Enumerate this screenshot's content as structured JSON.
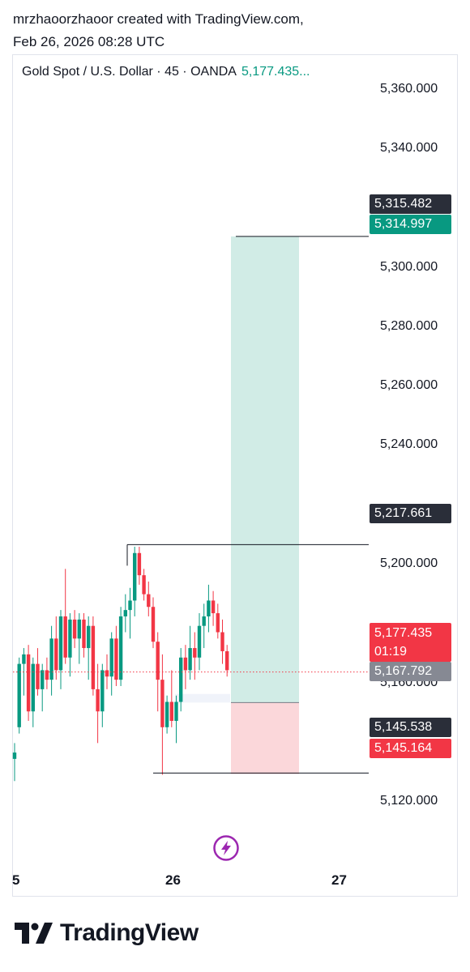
{
  "header": {
    "line1": "mrzhaoorzhaoor created with TradingView.com,",
    "line2": "Feb 26, 2026 08:28 UTC"
  },
  "legend": {
    "symbol": "Gold Spot / U.S. Dollar · 45 · OANDA",
    "price": "5,177.435..."
  },
  "price_axis": [
    "5,360.000",
    "5,340.000",
    "5,300.000",
    "5,280.000",
    "5,260.000",
    "5,240.000",
    "5,200.000",
    "5,160.000",
    "5,120.000"
  ],
  "tags": {
    "high_target": "5,315.482",
    "take_profit": "5,314.997",
    "swing_high": "5,217.661",
    "last_price": "5,177.435",
    "countdown": "01:19",
    "entry": "5,167.792",
    "swing_low": "5,145.538",
    "stop_loss": "5,145.164"
  },
  "time_axis": [
    "5",
    "26",
    "27"
  ],
  "footer": {
    "brand": "TradingView",
    "logo": "tradingview-logo-icon"
  },
  "colors": {
    "up": "#089981",
    "down": "#f23645",
    "profit_zone": "#d1ece6",
    "loss_zone": "#fbd7da",
    "flash": "#9c27b0"
  },
  "chart_data": {
    "type": "candlestick",
    "symbol": "XAUUSD",
    "timeframe": "45",
    "ylim": [
      5107,
      5372
    ],
    "last": 5177.435,
    "position": {
      "type": "long",
      "entry": 5167.792,
      "target": 5314.997,
      "stop": 5145.164
    },
    "levels": [
      5315.482,
      5217.661,
      5145.538
    ],
    "candles": [
      [
        5150,
        5155,
        5143,
        5152
      ],
      [
        5160,
        5182,
        5158,
        5180
      ],
      [
        5180,
        5185,
        5170,
        5183
      ],
      [
        5183,
        5186,
        5162,
        5165
      ],
      [
        5165,
        5182,
        5160,
        5180
      ],
      [
        5180,
        5185,
        5170,
        5172
      ],
      [
        5172,
        5180,
        5165,
        5178
      ],
      [
        5178,
        5182,
        5172,
        5175
      ],
      [
        5175,
        5192,
        5170,
        5188
      ],
      [
        5188,
        5195,
        5175,
        5178
      ],
      [
        5178,
        5197,
        5172,
        5195
      ],
      [
        5195,
        5210,
        5180,
        5182
      ],
      [
        5182,
        5196,
        5176,
        5194
      ],
      [
        5194,
        5197,
        5185,
        5188
      ],
      [
        5188,
        5196,
        5180,
        5194
      ],
      [
        5194,
        5196,
        5182,
        5185
      ],
      [
        5185,
        5195,
        5175,
        5192
      ],
      [
        5192,
        5195,
        5170,
        5172
      ],
      [
        5172,
        5180,
        5155,
        5165
      ],
      [
        5165,
        5180,
        5160,
        5178
      ],
      [
        5178,
        5183,
        5172,
        5176
      ],
      [
        5176,
        5190,
        5170,
        5188
      ],
      [
        5188,
        5192,
        5173,
        5175
      ],
      [
        5175,
        5198,
        5173,
        5195
      ],
      [
        5195,
        5202,
        5190,
        5197
      ],
      [
        5197,
        5204,
        5188,
        5200
      ],
      [
        5200,
        5217,
        5195,
        5215
      ],
      [
        5215,
        5217,
        5205,
        5208
      ],
      [
        5208,
        5210,
        5200,
        5202
      ],
      [
        5202,
        5206,
        5195,
        5198
      ],
      [
        5198,
        5201,
        5185,
        5187
      ],
      [
        5187,
        5190,
        5165,
        5175
      ],
      [
        5175,
        5183,
        5145,
        5160
      ],
      [
        5160,
        5170,
        5158,
        5168
      ],
      [
        5168,
        5178,
        5160,
        5162
      ],
      [
        5162,
        5170,
        5155,
        5168
      ],
      [
        5168,
        5185,
        5165,
        5182
      ],
      [
        5182,
        5186,
        5172,
        5178
      ],
      [
        5178,
        5192,
        5175,
        5185
      ],
      [
        5185,
        5190,
        5175,
        5182
      ],
      [
        5182,
        5196,
        5178,
        5192
      ],
      [
        5192,
        5199,
        5185,
        5195
      ],
      [
        5195,
        5205,
        5190,
        5200
      ],
      [
        5200,
        5203,
        5192,
        5196
      ],
      [
        5196,
        5199,
        5188,
        5190
      ],
      [
        5190,
        5194,
        5180,
        5184
      ],
      [
        5184,
        5186,
        5176,
        5178
      ]
    ]
  }
}
